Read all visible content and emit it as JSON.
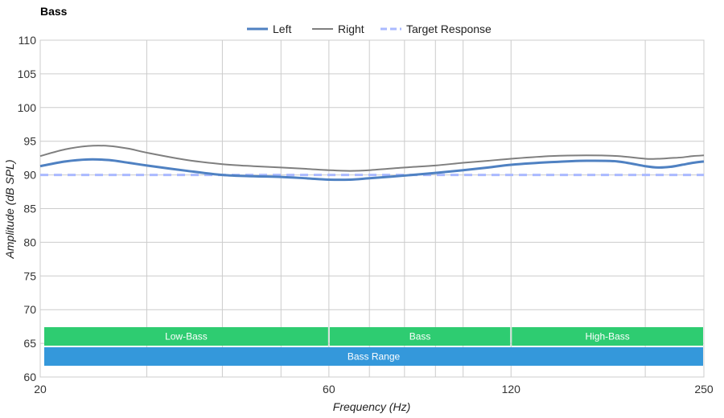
{
  "chart_data": {
    "type": "line",
    "title": "Bass",
    "xlabel": "Frequency (Hz)",
    "ylabel": "Amplitude (dB SPL)",
    "x_scale": "log",
    "xlim": [
      20,
      250
    ],
    "ylim": [
      60,
      110
    ],
    "x_ticks": [
      20,
      60,
      120,
      250
    ],
    "y_ticks": [
      110,
      105,
      100,
      95,
      90,
      85,
      80,
      75,
      70,
      65,
      60
    ],
    "x_gridlines": [
      20,
      30,
      40,
      50,
      60,
      70,
      80,
      90,
      100,
      120,
      200,
      250
    ],
    "grid": true,
    "legend_position": "top-center",
    "series": [
      {
        "name": "Left",
        "color": "#4f81c2",
        "style": "solid-thick",
        "x": [
          20,
          22,
          24,
          26,
          28,
          30,
          35,
          40,
          45,
          50,
          55,
          60,
          65,
          70,
          80,
          90,
          100,
          110,
          120,
          140,
          160,
          180,
          200,
          210,
          220,
          230,
          240,
          250
        ],
        "y": [
          91.3,
          92.0,
          92.3,
          92.2,
          91.8,
          91.4,
          90.6,
          90.0,
          89.8,
          89.7,
          89.5,
          89.3,
          89.3,
          89.5,
          89.9,
          90.3,
          90.7,
          91.1,
          91.5,
          91.9,
          92.1,
          92.0,
          91.3,
          91.1,
          91.2,
          91.5,
          91.8,
          92.0
        ]
      },
      {
        "name": "Right",
        "color": "#7f7f7f",
        "style": "solid-thin",
        "x": [
          20,
          22,
          24,
          26,
          28,
          30,
          35,
          40,
          45,
          50,
          55,
          60,
          65,
          70,
          80,
          90,
          100,
          110,
          120,
          140,
          160,
          180,
          200,
          210,
          220,
          230,
          240,
          250
        ],
        "y": [
          92.8,
          93.8,
          94.3,
          94.3,
          93.9,
          93.3,
          92.2,
          91.6,
          91.3,
          91.1,
          90.9,
          90.7,
          90.6,
          90.7,
          91.1,
          91.4,
          91.8,
          92.1,
          92.4,
          92.8,
          92.9,
          92.8,
          92.4,
          92.4,
          92.5,
          92.6,
          92.8,
          92.9
        ]
      },
      {
        "name": "Target Response",
        "color": "#aab9ff",
        "style": "dashed",
        "x": [
          20,
          250
        ],
        "y": [
          90,
          90
        ]
      }
    ],
    "bands": [
      {
        "label": "Low-Bass",
        "from": 20,
        "to": 60,
        "color": "#2ecc71",
        "row": 1
      },
      {
        "label": "Bass",
        "from": 60,
        "to": 120,
        "color": "#2ecc71",
        "row": 1
      },
      {
        "label": "High-Bass",
        "from": 120,
        "to": 250,
        "color": "#2ecc71",
        "row": 1
      },
      {
        "label": "Bass Range",
        "from": 20,
        "to": 250,
        "color": "#3498db",
        "row": 2
      }
    ]
  }
}
